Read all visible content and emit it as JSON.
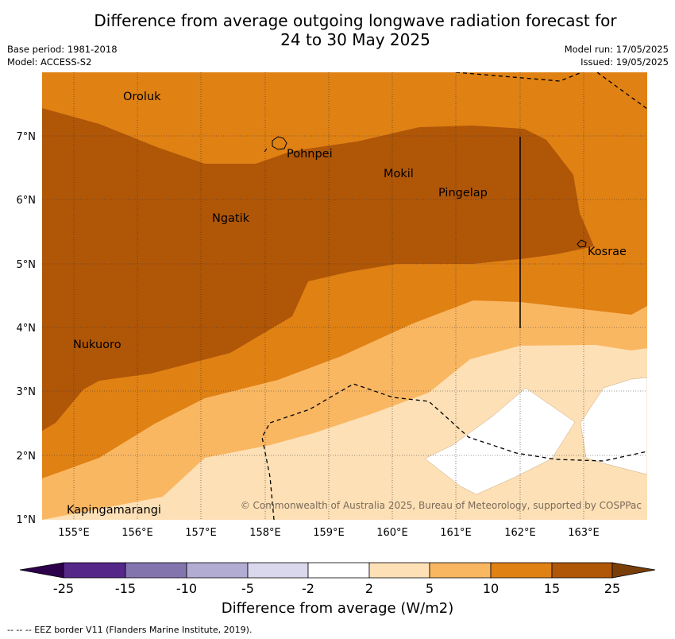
{
  "header": {
    "title_line1": "Difference from average outgoing longwave radiation forecast for",
    "title_line2": "24 to 30 May 2025",
    "base_period": "Base period: 1981-2018",
    "model": "Model: ACCESS-S2",
    "model_run": "Model run: 17/05/2025",
    "issued": "Issued: 19/05/2025"
  },
  "map": {
    "places": [
      "Oroluk",
      "Pohnpei",
      "Mokil",
      "Pingelap",
      "Ngatik",
      "Kosrae",
      "Nukuoro",
      "Kapingamarangi"
    ],
    "lat_ticks": [
      "7°N",
      "6°N",
      "5°N",
      "4°N",
      "3°N",
      "2°N",
      "1°N"
    ],
    "lon_ticks": [
      "155°E",
      "156°E",
      "157°E",
      "158°E",
      "159°E",
      "160°E",
      "161°E",
      "162°E",
      "163°E"
    ],
    "copyright": "© Commonwealth of Australia 2025, Bureau of Meteorology, supported by COSPPac",
    "colors": {
      "gt25": "#7a3e08",
      "15_25": "#b05607",
      "10_15": "#e08114",
      "5_10": "#fab762",
      "2_5": "#fde0b6",
      "neutral": "#ffffff",
      "m5_m2": "#d9d8ec",
      "m10_m5": "#b2abd2",
      "m15_m10": "#8474ae",
      "m25_m15": "#542788",
      "lt_m25": "#2d004b"
    }
  },
  "colorbar": {
    "tick_labels": [
      "-25",
      "-15",
      "-10",
      "-5",
      "-2",
      "2",
      "5",
      "10",
      "15",
      "25"
    ],
    "title": "Difference from average (W/m2)"
  },
  "footnote": "--  --  -- EEZ border V11 (Flanders Marine Institute, 2019)."
}
